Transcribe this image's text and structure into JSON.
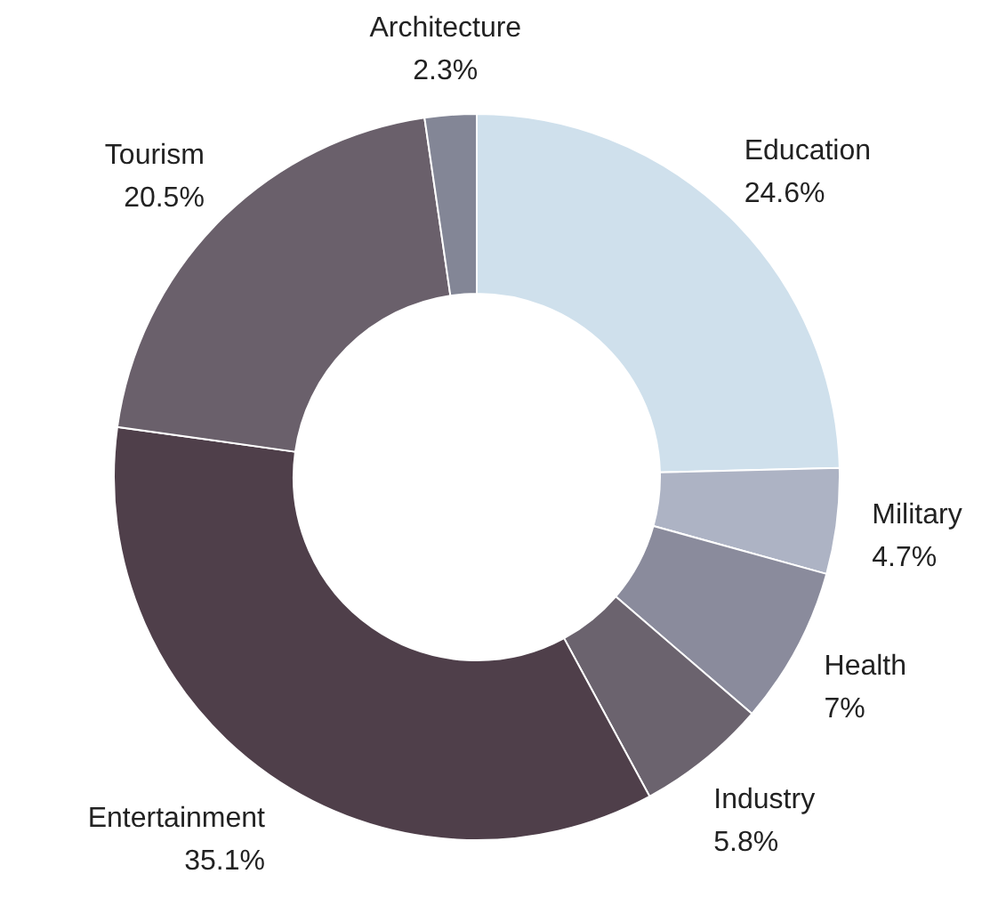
{
  "chart_data": {
    "type": "donut",
    "categories": [
      "Education",
      "Military",
      "Health",
      "Industry",
      "Entertainment",
      "Tourism",
      "Architecture"
    ],
    "values": [
      24.6,
      4.7,
      7,
      5.8,
      35.1,
      20.5,
      2.3
    ],
    "colors": [
      "#cfe0ec",
      "#adb3c4",
      "#8a8b9c",
      "#6b636e",
      "#4f3f4a",
      "#6a606b",
      "#838696"
    ],
    "value_labels": [
      "24.6%",
      "4.7%",
      "7%",
      "5.8%",
      "35.1%",
      "20.5%",
      "2.3%"
    ]
  }
}
